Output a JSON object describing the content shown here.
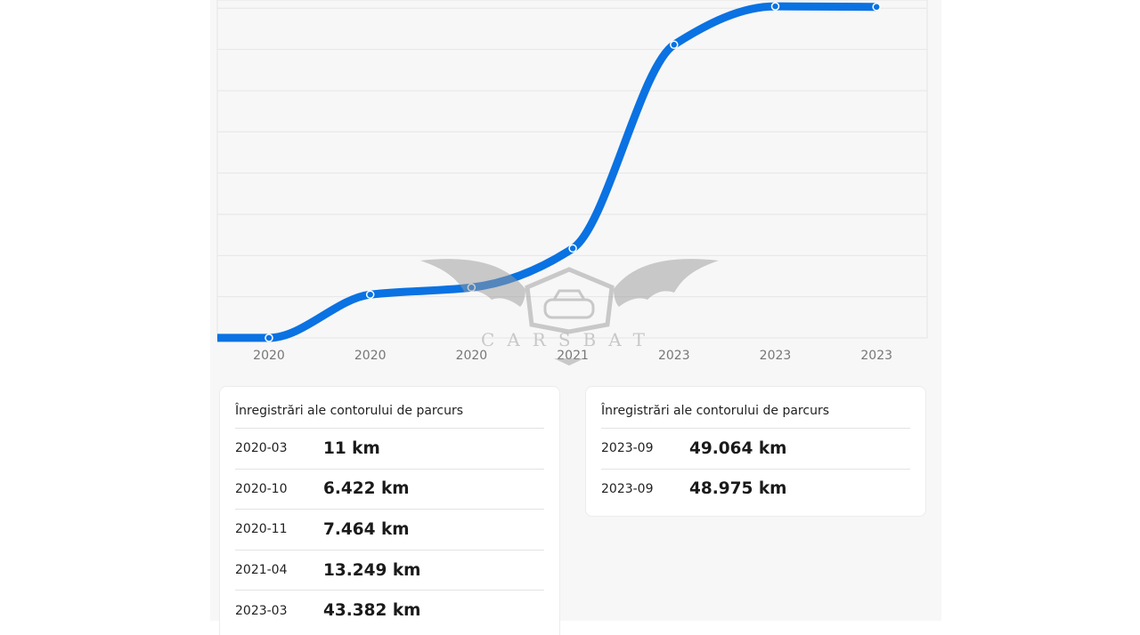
{
  "chart_data": {
    "type": "line",
    "x_tick_labels": [
      "2020",
      "2020",
      "2020",
      "2021",
      "2023",
      "2023",
      "2023"
    ],
    "series": [
      {
        "points": [
          {
            "date": "2020-03",
            "km": 11
          },
          {
            "date": "2020-10",
            "km": 6422
          },
          {
            "date": "2020-11",
            "km": 7464
          },
          {
            "date": "2021-04",
            "km": 13249
          },
          {
            "date": "2023-03",
            "km": 43382
          },
          {
            "date": "2023-09",
            "km": 49064
          },
          {
            "date": "2023-09",
            "km": 48975
          }
        ]
      }
    ],
    "ylim": [
      0,
      50000
    ],
    "grid": true,
    "colors": {
      "line": "#0a72e2",
      "grid": "#e6e6e6",
      "tick": "#777777"
    }
  },
  "watermark": {
    "text": "CARSBAT"
  },
  "cards": [
    {
      "title": "Înregistrări ale contorului de parcurs",
      "rows": [
        {
          "date": "2020-03",
          "km": "11 km"
        },
        {
          "date": "2020-10",
          "km": "6.422 km"
        },
        {
          "date": "2020-11",
          "km": "7.464 km"
        },
        {
          "date": "2021-04",
          "km": "13.249 km"
        },
        {
          "date": "2023-03",
          "km": "43.382 km"
        }
      ]
    },
    {
      "title": "Înregistrări ale contorului de parcurs",
      "rows": [
        {
          "date": "2023-09",
          "km": "49.064 km"
        },
        {
          "date": "2023-09",
          "km": "48.975 km"
        }
      ]
    }
  ]
}
